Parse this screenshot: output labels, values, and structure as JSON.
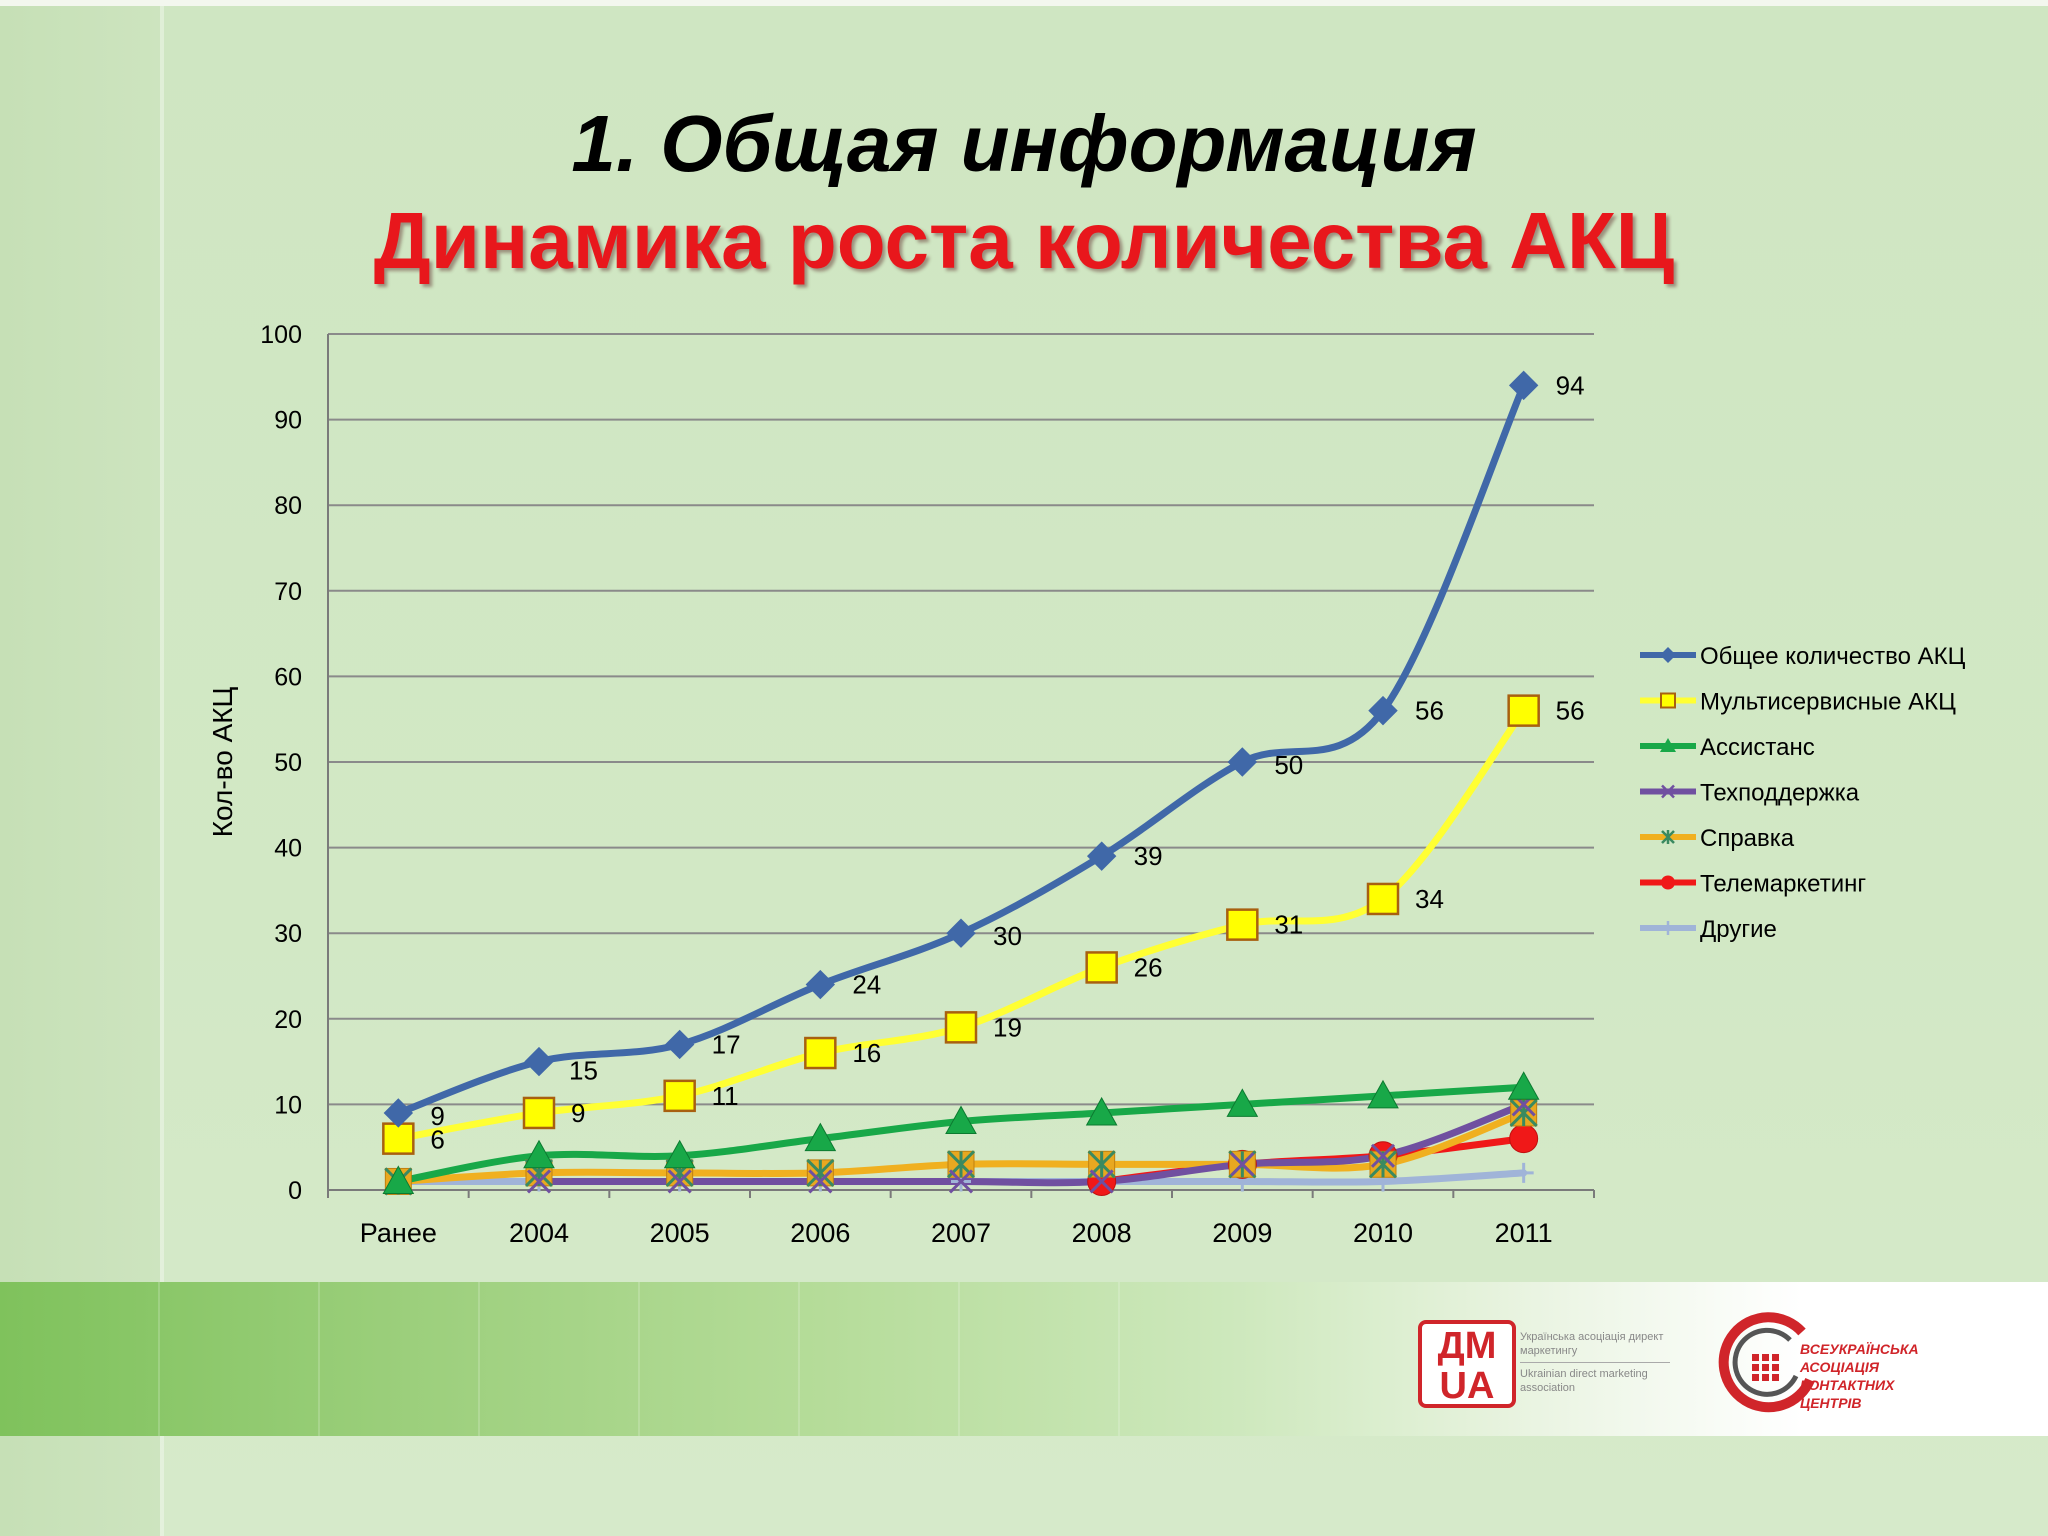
{
  "slide": {
    "title": "1. Общая информация",
    "subtitle": "Динамика роста количества АКЦ"
  },
  "chart_data": {
    "type": "line",
    "ylabel": "Кол-во АКЦ",
    "ylim": [
      0,
      100
    ],
    "yticks": [
      0,
      10,
      20,
      30,
      40,
      50,
      60,
      70,
      80,
      90,
      100
    ],
    "grid": true,
    "legend_position": "right",
    "categories": [
      "Ранее",
      "2004",
      "2005",
      "2006",
      "2007",
      "2008",
      "2009",
      "2010",
      "2011"
    ],
    "series": [
      {
        "name": "Общее количество АКЦ",
        "color": "#4068a8",
        "marker": "diamond",
        "values": [
          9,
          15,
          17,
          24,
          30,
          39,
          50,
          56,
          94
        ],
        "labels": true
      },
      {
        "name": "Мультисервисные АКЦ",
        "color": "#ffff33",
        "marker": "square",
        "values": [
          6,
          9,
          11,
          16,
          19,
          26,
          31,
          34,
          56
        ],
        "labels": true
      },
      {
        "name": "Ассистанс",
        "color": "#18a848",
        "marker": "triangle",
        "values": [
          1,
          4,
          4,
          6,
          8,
          9,
          10,
          11,
          12
        ]
      },
      {
        "name": "Техподдержка",
        "color": "#7050a0",
        "marker": "x",
        "values": [
          null,
          1,
          1,
          1,
          1,
          1,
          3,
          4,
          10
        ]
      },
      {
        "name": "Справка",
        "color": "#f0b020",
        "marker": "star",
        "values": [
          1,
          2,
          2,
          2,
          3,
          3,
          3,
          3,
          9
        ]
      },
      {
        "name": "Телемаркетинг",
        "color": "#f01818",
        "marker": "circle",
        "values": [
          null,
          null,
          null,
          null,
          null,
          1,
          3,
          4,
          6
        ]
      },
      {
        "name": "Другие",
        "color": "#a0b4d8",
        "marker": "plus",
        "values": [
          1,
          1,
          1,
          1,
          1,
          1,
          1,
          1,
          2
        ]
      }
    ]
  },
  "footer": {
    "logo1_mark": "ДМ UA",
    "logo1_line1": "Українська асоціація директ маркетингу",
    "logo1_line2": "Ukrainian direct marketing association",
    "logo2_text": "ВСЕУКРАЇНСЬКА АСОЦІАЦІЯ КОНТАКТНИХ ЦЕНТРІВ"
  }
}
